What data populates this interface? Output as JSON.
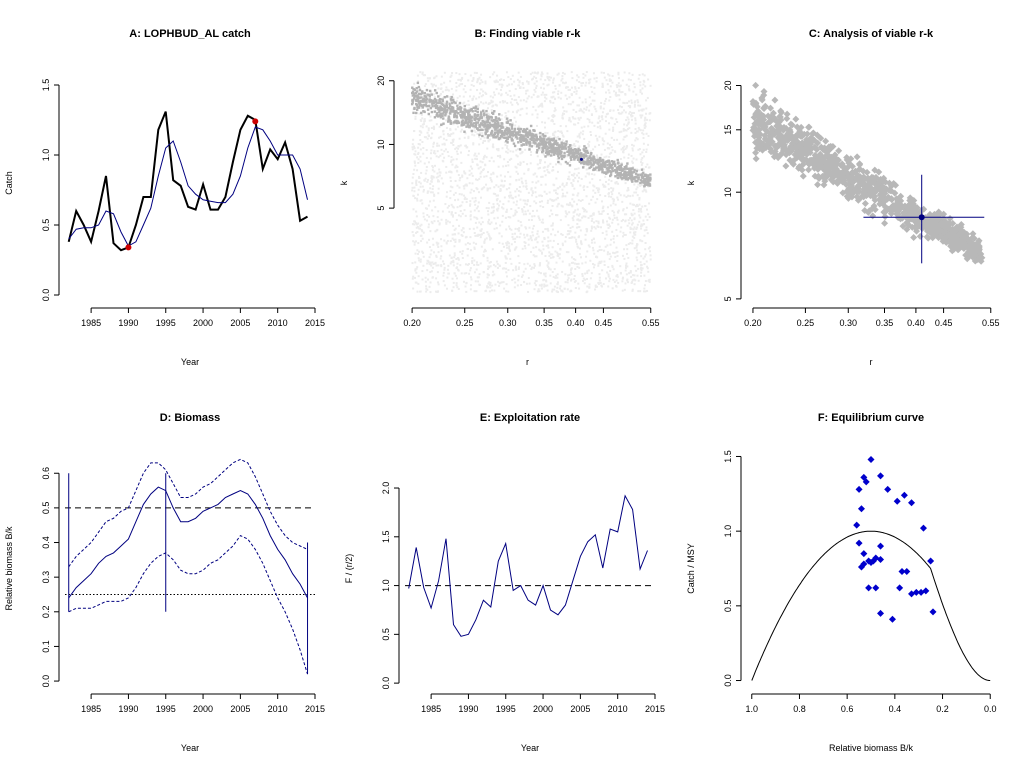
{
  "chart_data": [
    {
      "panel": "A",
      "type": "line",
      "title": "A:  LOPHBUD_AL catch",
      "xlabel": "Year",
      "ylabel": "Catch",
      "xlim": [
        1981.5,
        2015
      ],
      "ylim": [
        -0.05,
        1.65
      ],
      "xticks": [
        1985,
        1990,
        1995,
        2000,
        2005,
        2010,
        2015
      ],
      "yticks": [
        0.0,
        0.5,
        1.0,
        1.5
      ],
      "grid": false,
      "x": [
        1982,
        1983,
        1984,
        1985,
        1986,
        1987,
        1988,
        1989,
        1990,
        1991,
        1992,
        1993,
        1994,
        1995,
        1996,
        1997,
        1998,
        1999,
        2000,
        2001,
        2002,
        2003,
        2004,
        2005,
        2006,
        2007,
        2008,
        2009,
        2010,
        2011,
        2012,
        2013,
        2014
      ],
      "series": [
        {
          "values": [
            0.38,
            0.6,
            0.5,
            0.38,
            0.6,
            0.85,
            0.37,
            0.32,
            0.34,
            0.5,
            0.7,
            0.7,
            1.18,
            1.31,
            0.82,
            0.78,
            0.63,
            0.61,
            0.79,
            0.61,
            0.61,
            0.7,
            0.95,
            1.18,
            1.28,
            1.25,
            0.9,
            1.04,
            0.97,
            1.09,
            0.9,
            0.53,
            0.56
          ],
          "color": "#000000"
        },
        {
          "values": [
            0.4,
            0.47,
            0.48,
            0.48,
            0.5,
            0.6,
            0.58,
            0.45,
            0.35,
            0.38,
            0.5,
            0.62,
            0.85,
            1.05,
            1.1,
            0.95,
            0.78,
            0.72,
            0.68,
            0.67,
            0.66,
            0.66,
            0.72,
            0.85,
            1.05,
            1.2,
            1.18,
            1.1,
            1.0,
            1.0,
            1.0,
            0.9,
            0.68
          ],
          "color": "#000080"
        }
      ],
      "markers": [
        {
          "x": 1990,
          "y": 0.34,
          "color": "#cc0000"
        },
        {
          "x": 2007,
          "y": 1.24,
          "color": "#cc0000"
        }
      ]
    },
    {
      "panel": "B",
      "type": "scatter",
      "title": "B: Finding viable r-k",
      "xlabel": "r",
      "ylabel": "k",
      "log_axes": true,
      "xlim": [
        0.19,
        0.56
      ],
      "ylim": [
        1.8,
        24
      ],
      "xticks": [
        0.2,
        0.25,
        0.3,
        0.35,
        0.4,
        0.45,
        0.55
      ],
      "yticks": [
        5,
        10,
        20
      ],
      "grid": false,
      "background_points": {
        "r_range": [
          0.2,
          0.55
        ],
        "k_range": [
          2,
          22
        ],
        "count": 3000,
        "color": "#ececec"
      },
      "viable_band": {
        "color": "#b3b3b3",
        "count": 1200,
        "points": [
          {
            "r": 0.2,
            "k_low": 13.0,
            "k_high": 21.0
          },
          {
            "r": 0.55,
            "k_low": 6.0,
            "k_high": 7.5
          }
        ]
      },
      "highlight": {
        "r": 0.41,
        "k": 8.5,
        "color": "#000080"
      }
    },
    {
      "panel": "C",
      "type": "scatter",
      "title": "C: Analysis of viable r-k",
      "xlabel": "r",
      "ylabel": "k",
      "log_axes": true,
      "xlim": [
        0.195,
        0.56
      ],
      "ylim": [
        4.9,
        23
      ],
      "xticks": [
        0.2,
        0.25,
        0.3,
        0.35,
        0.4,
        0.45,
        0.55
      ],
      "yticks": [
        5,
        10,
        15,
        20
      ],
      "grid": false,
      "viable_band": {
        "color": "#b8b8b8",
        "count": 900,
        "points": [
          {
            "r": 0.2,
            "k_low": 12.0,
            "k_high": 21.0
          },
          {
            "r": 0.53,
            "k_low": 6.0,
            "k_high": 7.5
          }
        ]
      },
      "estimate": {
        "r": 0.41,
        "k": 8.5,
        "r_low": 0.32,
        "r_high": 0.535,
        "k_low": 6.3,
        "k_high": 11.2,
        "color": "#000080"
      }
    },
    {
      "panel": "D",
      "type": "line",
      "title": "D: Biomass",
      "xlabel": "Year",
      "ylabel": "Relative biomass B/k",
      "xlim": [
        1981.5,
        2015
      ],
      "ylim": [
        -0.02,
        0.67
      ],
      "xticks": [
        1985,
        1990,
        1995,
        2000,
        2005,
        2010,
        2015
      ],
      "yticks": [
        0.0,
        0.1,
        0.2,
        0.3,
        0.4,
        0.5,
        0.6
      ],
      "grid": false,
      "x": [
        1982,
        1983,
        1984,
        1985,
        1986,
        1987,
        1988,
        1989,
        1990,
        1991,
        1992,
        1993,
        1994,
        1995,
        1996,
        1997,
        1998,
        1999,
        2000,
        2001,
        2002,
        2003,
        2004,
        2005,
        2006,
        2007,
        2008,
        2009,
        2010,
        2011,
        2012,
        2013,
        2014
      ],
      "series": [
        {
          "name": "median",
          "values": [
            0.24,
            0.27,
            0.29,
            0.31,
            0.34,
            0.36,
            0.37,
            0.39,
            0.41,
            0.46,
            0.51,
            0.54,
            0.56,
            0.55,
            0.5,
            0.46,
            0.46,
            0.47,
            0.49,
            0.5,
            0.51,
            0.53,
            0.54,
            0.55,
            0.54,
            0.51,
            0.47,
            0.42,
            0.38,
            0.35,
            0.31,
            0.28,
            0.24
          ],
          "style": "solid",
          "color": "#000080"
        },
        {
          "name": "upper",
          "values": [
            0.33,
            0.36,
            0.38,
            0.4,
            0.43,
            0.46,
            0.47,
            0.49,
            0.5,
            0.55,
            0.6,
            0.63,
            0.63,
            0.61,
            0.57,
            0.53,
            0.53,
            0.54,
            0.56,
            0.57,
            0.59,
            0.61,
            0.63,
            0.64,
            0.63,
            0.59,
            0.54,
            0.49,
            0.45,
            0.42,
            0.4,
            0.39,
            0.38
          ],
          "style": "dashed",
          "color": "#000080"
        },
        {
          "name": "lower",
          "values": [
            0.2,
            0.21,
            0.21,
            0.21,
            0.22,
            0.23,
            0.23,
            0.23,
            0.24,
            0.27,
            0.31,
            0.34,
            0.36,
            0.37,
            0.35,
            0.32,
            0.31,
            0.31,
            0.32,
            0.34,
            0.35,
            0.37,
            0.39,
            0.42,
            0.41,
            0.38,
            0.34,
            0.29,
            0.24,
            0.2,
            0.15,
            0.09,
            0.02
          ],
          "style": "dashed",
          "color": "#000080"
        }
      ],
      "reference_lines": [
        {
          "y": 0.5,
          "style": "dashed",
          "color": "#000000"
        },
        {
          "y": 0.25,
          "style": "dotted",
          "color": "#000000"
        }
      ],
      "vertical_ranges": [
        {
          "x": 1982,
          "low": 0.2,
          "high": 0.6,
          "color": "#000080"
        },
        {
          "x": 1995,
          "low": 0.2,
          "high": 0.6,
          "color": "#000080"
        },
        {
          "x": 2014,
          "low": 0.02,
          "high": 0.4,
          "color": "#000080"
        }
      ]
    },
    {
      "panel": "E",
      "type": "line",
      "title": "E: Exploitation rate",
      "xlabel": "Year",
      "ylabel": "F / (r/2)",
      "xlim": [
        1981.5,
        2015
      ],
      "ylim": [
        -0.05,
        2.4
      ],
      "xticks": [
        1985,
        1990,
        1995,
        2000,
        2005,
        2010,
        2015
      ],
      "yticks": [
        0.0,
        0.5,
        1.0,
        1.5,
        2.0
      ],
      "grid": false,
      "x": [
        1982,
        1983,
        1984,
        1985,
        1986,
        1987,
        1988,
        1989,
        1990,
        1991,
        1992,
        1993,
        1994,
        1995,
        1996,
        1997,
        1998,
        1999,
        2000,
        2001,
        2002,
        2003,
        2004,
        2005,
        2006,
        2007,
        2008,
        2009,
        2010,
        2011,
        2012,
        2013,
        2014
      ],
      "series": [
        {
          "values": [
            0.97,
            1.39,
            0.98,
            0.77,
            1.05,
            1.48,
            0.6,
            0.48,
            0.5,
            0.65,
            0.85,
            0.78,
            1.25,
            1.43,
            0.95,
            1.0,
            0.85,
            0.8,
            1.0,
            0.75,
            0.7,
            0.8,
            1.05,
            1.3,
            1.45,
            1.52,
            1.18,
            1.58,
            1.55,
            1.92,
            1.78,
            1.17,
            1.36
          ],
          "color": "#000080"
        }
      ],
      "reference_lines": [
        {
          "y": 1.0,
          "style": "dashed",
          "color": "#000000"
        }
      ]
    },
    {
      "panel": "F",
      "type": "scatter",
      "title": "F: Equilibrium curve",
      "xlabel": "Relative biomass B/k",
      "ylabel": "Catch / MSY",
      "xlim": [
        1.02,
        -0.02
      ],
      "ylim": [
        -0.05,
        1.55
      ],
      "xticks": [
        1.0,
        0.8,
        0.6,
        0.4,
        0.2,
        0.0
      ],
      "yticks": [
        0.0,
        0.5,
        1.0,
        1.5
      ],
      "grid": false,
      "curve": {
        "color": "#000000",
        "note": "parabola 4B(1-B) for B>=0.25, linear decline below"
      },
      "points": [
        [
          0.56,
          1.04
        ],
        [
          0.55,
          1.28
        ],
        [
          0.54,
          1.15
        ],
        [
          0.53,
          1.36
        ],
        [
          0.52,
          1.33
        ],
        [
          0.5,
          1.48
        ],
        [
          0.46,
          1.37
        ],
        [
          0.43,
          1.28
        ],
        [
          0.39,
          1.2
        ],
        [
          0.36,
          1.24
        ],
        [
          0.33,
          1.19
        ],
        [
          0.28,
          1.02
        ],
        [
          0.25,
          0.8
        ],
        [
          0.55,
          0.92
        ],
        [
          0.54,
          0.76
        ],
        [
          0.53,
          0.78
        ],
        [
          0.51,
          0.8
        ],
        [
          0.5,
          0.79
        ],
        [
          0.48,
          0.82
        ],
        [
          0.46,
          0.81
        ],
        [
          0.46,
          0.9
        ],
        [
          0.51,
          0.62
        ],
        [
          0.46,
          0.45
        ],
        [
          0.41,
          0.41
        ],
        [
          0.37,
          0.73
        ],
        [
          0.35,
          0.73
        ],
        [
          0.38,
          0.62
        ],
        [
          0.33,
          0.58
        ],
        [
          0.31,
          0.59
        ],
        [
          0.29,
          0.59
        ],
        [
          0.27,
          0.6
        ],
        [
          0.24,
          0.46
        ],
        [
          0.48,
          0.62
        ],
        [
          0.53,
          0.85
        ],
        [
          0.49,
          0.8
        ]
      ],
      "point_color": "#0000cc"
    }
  ]
}
